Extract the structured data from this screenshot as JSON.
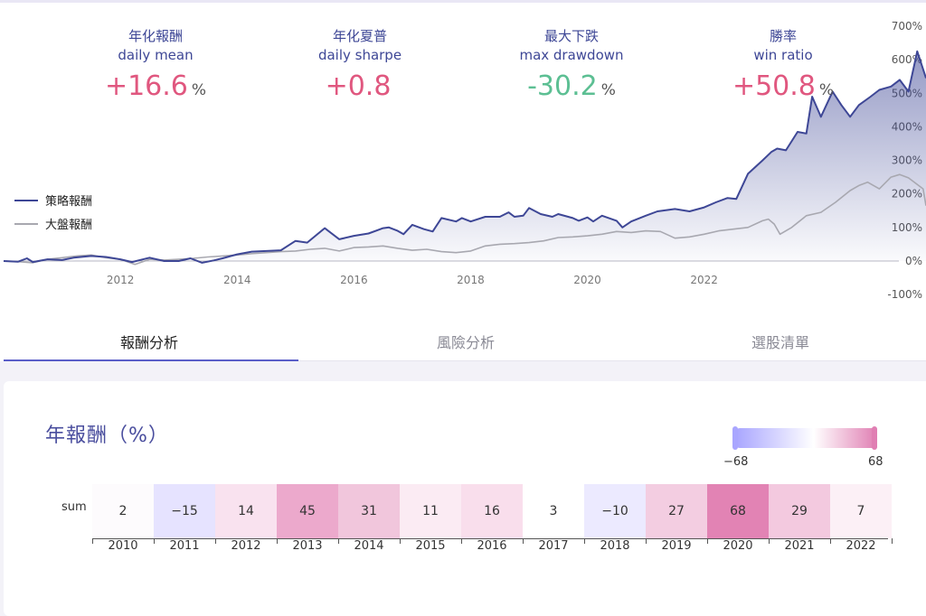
{
  "stats": [
    {
      "zh": "年化報酬",
      "en": "daily mean",
      "value": "+16.6",
      "unit": "%",
      "tone": "pos"
    },
    {
      "zh": "年化夏普",
      "en": "daily sharpe",
      "value": "+0.8",
      "unit": "",
      "tone": "pos"
    },
    {
      "zh": "最大下跌",
      "en": "max drawdown",
      "value": "-30.2",
      "unit": "%",
      "tone": "neg"
    },
    {
      "zh": "勝率",
      "en": "win ratio",
      "value": "+50.8",
      "unit": "%",
      "tone": "pos"
    }
  ],
  "tabs": [
    {
      "label": "報酬分析",
      "active": true
    },
    {
      "label": "風險分析",
      "active": false
    },
    {
      "label": "選股清單",
      "active": false
    }
  ],
  "chart_data": {
    "type": "line",
    "series": [
      {
        "name": "策略報酬",
        "color": "#3e4796",
        "points": [
          [
            2010.0,
            0
          ],
          [
            2010.25,
            -2
          ],
          [
            2010.4,
            8
          ],
          [
            2010.5,
            -3
          ],
          [
            2010.75,
            5
          ],
          [
            2011.0,
            3
          ],
          [
            2011.2,
            10
          ],
          [
            2011.5,
            15
          ],
          [
            2011.75,
            12
          ],
          [
            2012.0,
            5
          ],
          [
            2012.2,
            -3
          ],
          [
            2012.5,
            10
          ],
          [
            2012.75,
            0
          ],
          [
            2013.0,
            0
          ],
          [
            2013.2,
            8
          ],
          [
            2013.4,
            -5
          ],
          [
            2013.6,
            2
          ],
          [
            2013.75,
            8
          ],
          [
            2014.0,
            20
          ],
          [
            2014.25,
            28
          ],
          [
            2014.5,
            30
          ],
          [
            2014.75,
            32
          ],
          [
            2015.0,
            60
          ],
          [
            2015.2,
            55
          ],
          [
            2015.5,
            98
          ],
          [
            2015.75,
            65
          ],
          [
            2016.0,
            75
          ],
          [
            2016.25,
            82
          ],
          [
            2016.5,
            98
          ],
          [
            2016.6,
            100
          ],
          [
            2016.75,
            90
          ],
          [
            2016.85,
            80
          ],
          [
            2017.0,
            108
          ],
          [
            2017.2,
            95
          ],
          [
            2017.35,
            88
          ],
          [
            2017.5,
            128
          ],
          [
            2017.75,
            118
          ],
          [
            2017.85,
            128
          ],
          [
            2018.0,
            118
          ],
          [
            2018.25,
            132
          ],
          [
            2018.5,
            132
          ],
          [
            2018.65,
            145
          ],
          [
            2018.75,
            132
          ],
          [
            2018.9,
            135
          ],
          [
            2019.0,
            158
          ],
          [
            2019.2,
            140
          ],
          [
            2019.4,
            132
          ],
          [
            2019.5,
            140
          ],
          [
            2019.75,
            128
          ],
          [
            2019.85,
            120
          ],
          [
            2020.0,
            130
          ],
          [
            2020.1,
            118
          ],
          [
            2020.25,
            135
          ],
          [
            2020.5,
            120
          ],
          [
            2020.6,
            100
          ],
          [
            2020.75,
            118
          ],
          [
            2021.0,
            135
          ],
          [
            2021.2,
            148
          ],
          [
            2021.5,
            155
          ],
          [
            2021.75,
            148
          ],
          [
            2022.0,
            160
          ],
          [
            2022.2,
            175
          ],
          [
            2022.4,
            188
          ],
          [
            2022.55,
            185
          ],
          [
            2022.75,
            260
          ],
          [
            2023.0,
            300
          ],
          [
            2023.15,
            325
          ],
          [
            2023.25,
            335
          ],
          [
            2023.4,
            330
          ],
          [
            2023.6,
            385
          ],
          [
            2023.75,
            380
          ],
          [
            2023.85,
            490
          ],
          [
            2024.0,
            430
          ],
          [
            2024.2,
            505
          ],
          [
            2024.35,
            465
          ],
          [
            2024.5,
            430
          ],
          [
            2024.65,
            465
          ],
          [
            2024.85,
            490
          ],
          [
            2025.0,
            510
          ],
          [
            2025.2,
            520
          ],
          [
            2025.35,
            540
          ],
          [
            2025.5,
            505
          ],
          [
            2025.65,
            625
          ],
          [
            2025.8,
            545
          ]
        ]
      },
      {
        "name": "大盤報酬",
        "color": "#a8a8b0",
        "points": [
          [
            2010.0,
            0
          ],
          [
            2010.25,
            -2
          ],
          [
            2010.5,
            -5
          ],
          [
            2010.75,
            5
          ],
          [
            2011.0,
            10
          ],
          [
            2011.25,
            15
          ],
          [
            2011.5,
            18
          ],
          [
            2011.75,
            10
          ],
          [
            2012.0,
            5
          ],
          [
            2012.25,
            -10
          ],
          [
            2012.5,
            5
          ],
          [
            2012.75,
            3
          ],
          [
            2013.0,
            5
          ],
          [
            2013.25,
            8
          ],
          [
            2013.5,
            12
          ],
          [
            2013.75,
            15
          ],
          [
            2014.0,
            18
          ],
          [
            2014.25,
            22
          ],
          [
            2014.5,
            25
          ],
          [
            2014.75,
            28
          ],
          [
            2015.0,
            30
          ],
          [
            2015.25,
            35
          ],
          [
            2015.5,
            38
          ],
          [
            2015.75,
            30
          ],
          [
            2016.0,
            40
          ],
          [
            2016.25,
            42
          ],
          [
            2016.5,
            45
          ],
          [
            2016.75,
            38
          ],
          [
            2017.0,
            32
          ],
          [
            2017.25,
            35
          ],
          [
            2017.5,
            28
          ],
          [
            2017.75,
            25
          ],
          [
            2018.0,
            30
          ],
          [
            2018.25,
            45
          ],
          [
            2018.5,
            50
          ],
          [
            2018.75,
            52
          ],
          [
            2019.0,
            55
          ],
          [
            2019.25,
            60
          ],
          [
            2019.5,
            70
          ],
          [
            2019.75,
            72
          ],
          [
            2020.0,
            75
          ],
          [
            2020.25,
            80
          ],
          [
            2020.5,
            88
          ],
          [
            2020.75,
            85
          ],
          [
            2021.0,
            90
          ],
          [
            2021.25,
            88
          ],
          [
            2021.5,
            68
          ],
          [
            2021.75,
            72
          ],
          [
            2022.0,
            80
          ],
          [
            2022.25,
            90
          ],
          [
            2022.5,
            95
          ],
          [
            2022.75,
            100
          ],
          [
            2023.0,
            120
          ],
          [
            2023.1,
            125
          ],
          [
            2023.2,
            110
          ],
          [
            2023.3,
            80
          ],
          [
            2023.5,
            100
          ],
          [
            2023.75,
            135
          ],
          [
            2024.0,
            145
          ],
          [
            2024.25,
            175
          ],
          [
            2024.5,
            210
          ],
          [
            2024.65,
            225
          ],
          [
            2024.8,
            235
          ],
          [
            2025.0,
            215
          ],
          [
            2025.2,
            250
          ],
          [
            2025.35,
            258
          ],
          [
            2025.5,
            248
          ],
          [
            2025.75,
            215
          ],
          [
            2025.8,
            165
          ]
        ]
      }
    ],
    "x_ticks": [
      "2012",
      "2014",
      "2016",
      "2018",
      "2020",
      "2022"
    ],
    "y_ticks": [
      "700%",
      "600%",
      "500%",
      "400%",
      "300%",
      "200%",
      "100%",
      "0%",
      "-100%"
    ],
    "ylim": [
      -100,
      700
    ],
    "legend_position": "left"
  },
  "heatmap": {
    "title": "年報酬（%）",
    "row_label": "sum",
    "scale_min": "−68",
    "scale_max": "68",
    "years": [
      "2010",
      "2011",
      "2012",
      "2013",
      "2014",
      "2015",
      "2016",
      "2017",
      "2018",
      "2019",
      "2020",
      "2021",
      "2022"
    ],
    "values": [
      "2",
      "−15",
      "14",
      "45",
      "31",
      "11",
      "16",
      "3",
      "−10",
      "27",
      "68",
      "29",
      "7"
    ],
    "cell_colors": [
      "#fdfbfd",
      "#e6e3ff",
      "#f9e2ef",
      "#eca9cc",
      "#f1c6dc",
      "#fbebf3",
      "#f9deec",
      "#ffffff",
      "#eceaff",
      "#f3cde1",
      "#e283b4",
      "#f3c9df",
      "#fcf0f6"
    ]
  }
}
